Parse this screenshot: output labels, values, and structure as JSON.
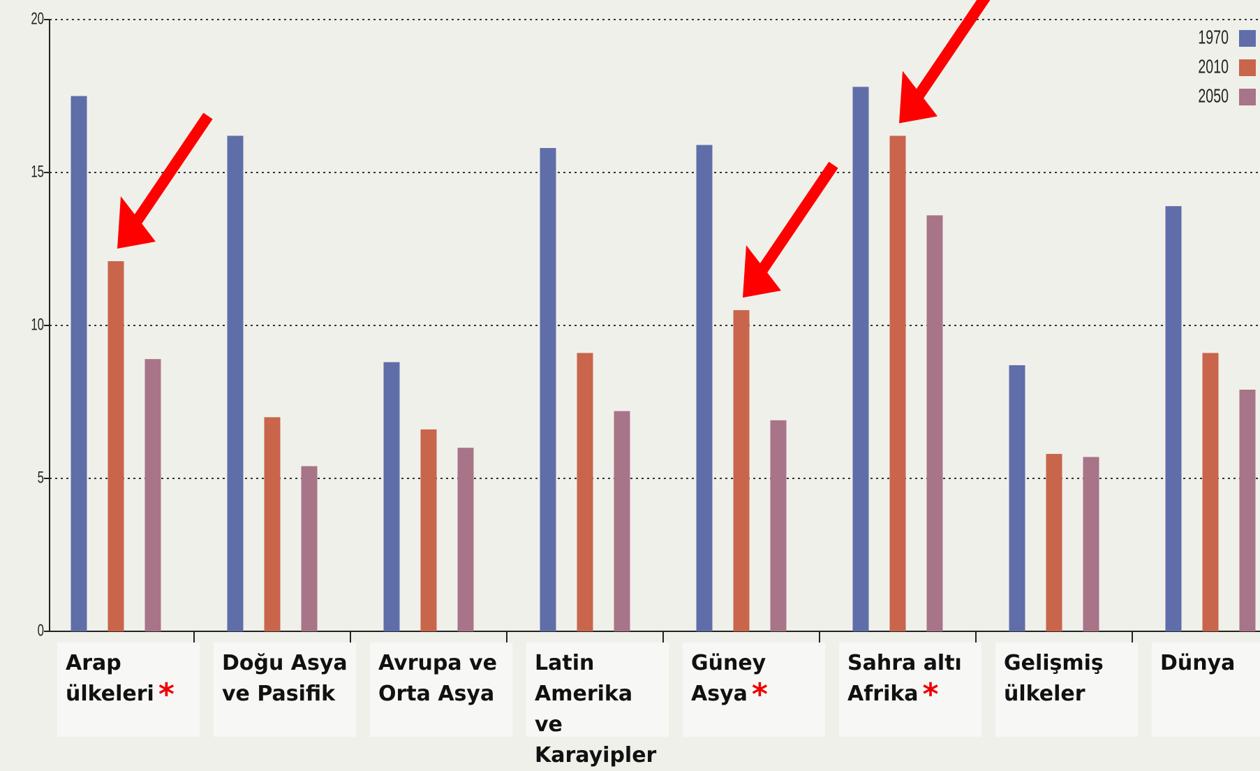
{
  "chart_data": {
    "type": "bar",
    "categories": [
      "Arap ülkeleri",
      "Doğu Asya ve Pasifik",
      "Avrupa ve Orta Asya",
      "Latin Amerika ve Karayipler",
      "Güney Asya",
      "Sahra altı Afrika",
      "Gelişmiş ülkeler",
      "Dünya"
    ],
    "category_notes": [
      "*",
      null,
      null,
      null,
      "*",
      "*",
      null,
      null
    ],
    "series": [
      {
        "name": "1970",
        "color": "#5f6ea8",
        "values": [
          17.5,
          16.2,
          8.8,
          15.8,
          15.9,
          17.8,
          8.7,
          13.9
        ]
      },
      {
        "name": "2010",
        "color": "#c8654b",
        "values": [
          12.1,
          7.0,
          6.6,
          9.1,
          10.5,
          16.2,
          5.8,
          9.1
        ]
      },
      {
        "name": "2050",
        "color": "#a87488",
        "values": [
          8.9,
          5.4,
          6.0,
          7.2,
          6.9,
          13.6,
          5.7,
          7.9
        ]
      }
    ],
    "ylim": [
      0,
      20
    ],
    "yticks": [
      0,
      5,
      10,
      15,
      20
    ],
    "grid": true,
    "legend": "upper right"
  }
}
